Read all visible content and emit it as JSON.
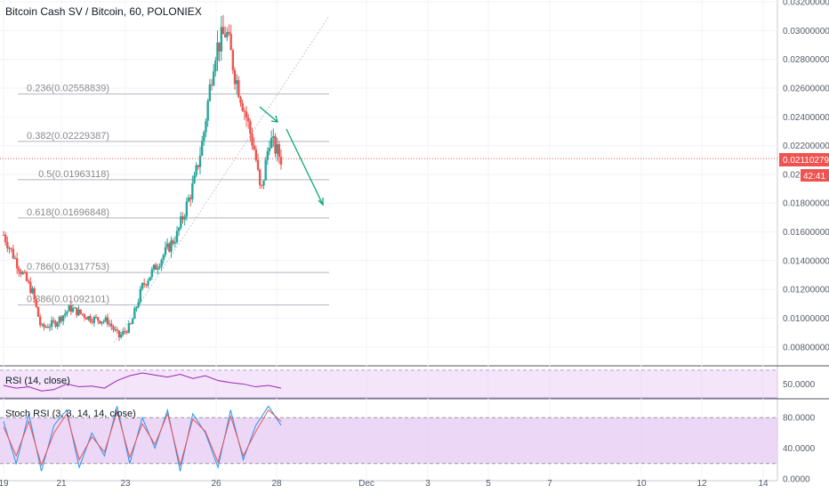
{
  "title": "Bitcoin Cash SV / Bitcoin, 60, POLONIEX",
  "current_price": "0.02110279",
  "countdown": "42:41",
  "colors": {
    "up": "#26a69a",
    "down": "#ef5350",
    "fib": "#b2b5be",
    "arrow": "#0ca678",
    "rsi_line": "#9c27b0",
    "rsi_band": "#e6c6f3",
    "stoch_k": "#2196f3",
    "stoch_d": "#ef5350",
    "price_line": "#ef5350"
  },
  "chart_data": {
    "type": "candlestick",
    "title": "Bitcoin Cash SV / Bitcoin, 60, POLONIEX",
    "ylim": [
      0.007,
      0.032
    ],
    "y_ticks": [
      "0.03200000",
      "0.03000000",
      "0.02800000",
      "0.02600000",
      "0.02400000",
      "0.02200000",
      "0.02000000",
      "0.01800000",
      "0.01600000",
      "0.01400000",
      "0.01200000",
      "0.01000000",
      "0.00800000"
    ],
    "x_ticks": [
      "19",
      "21",
      "23",
      "26",
      "28",
      "Dec",
      "3",
      "5",
      "7",
      "10",
      "12",
      "14"
    ],
    "close_anchors": [
      {
        "x": 19,
        "close": 0.0158
      },
      {
        "x": 19.5,
        "close": 0.0137
      },
      {
        "x": 20,
        "close": 0.0118
      },
      {
        "x": 20.3,
        "close": 0.0093
      },
      {
        "x": 20.8,
        "close": 0.0097
      },
      {
        "x": 21.3,
        "close": 0.0107
      },
      {
        "x": 22.0,
        "close": 0.01
      },
      {
        "x": 22.6,
        "close": 0.0098
      },
      {
        "x": 23.0,
        "close": 0.0087
      },
      {
        "x": 23.4,
        "close": 0.0095
      },
      {
        "x": 23.8,
        "close": 0.0122
      },
      {
        "x": 24.4,
        "close": 0.014
      },
      {
        "x": 25.0,
        "close": 0.0158
      },
      {
        "x": 25.6,
        "close": 0.0195
      },
      {
        "x": 25.9,
        "close": 0.0225
      },
      {
        "x": 26.3,
        "close": 0.0285
      },
      {
        "x": 26.7,
        "close": 0.03
      },
      {
        "x": 27.0,
        "close": 0.027
      },
      {
        "x": 27.4,
        "close": 0.024
      },
      {
        "x": 27.7,
        "close": 0.0215
      },
      {
        "x": 27.9,
        "close": 0.0185
      },
      {
        "x": 28.2,
        "close": 0.0225
      },
      {
        "x": 28.6,
        "close": 0.0211
      }
    ],
    "fibonacci": [
      {
        "level": "0.236",
        "price": "0.02558839"
      },
      {
        "level": "0.382",
        "price": "0.02229387"
      },
      {
        "level": "0.5",
        "price": "0.01963118"
      },
      {
        "level": "0.618",
        "price": "0.01696848"
      },
      {
        "level": "0.786",
        "price": "0.01317753"
      },
      {
        "level": "0.886",
        "price": "0.01092101"
      }
    ],
    "rsi": {
      "label": "RSI (14, close)",
      "value_label": "50.0000",
      "values": [
        48,
        44,
        46,
        40,
        42,
        50,
        46,
        47,
        44,
        55,
        62,
        66,
        63,
        60,
        64,
        58,
        62,
        55,
        52,
        50,
        46,
        48,
        44
      ]
    },
    "stoch_rsi": {
      "label": "Stoch RSI (3, 3, 14, 14, close)",
      "y_ticks": [
        "80.0000",
        "40.0000",
        "0.0000"
      ],
      "k": [
        75,
        20,
        85,
        10,
        70,
        90,
        15,
        60,
        30,
        95,
        20,
        80,
        40,
        90,
        10,
        85,
        60,
        15,
        90,
        25,
        70,
        95,
        70
      ],
      "d": [
        68,
        30,
        75,
        18,
        60,
        85,
        25,
        55,
        35,
        88,
        28,
        72,
        45,
        85,
        18,
        78,
        62,
        22,
        82,
        30,
        62,
        90,
        75
      ]
    }
  }
}
